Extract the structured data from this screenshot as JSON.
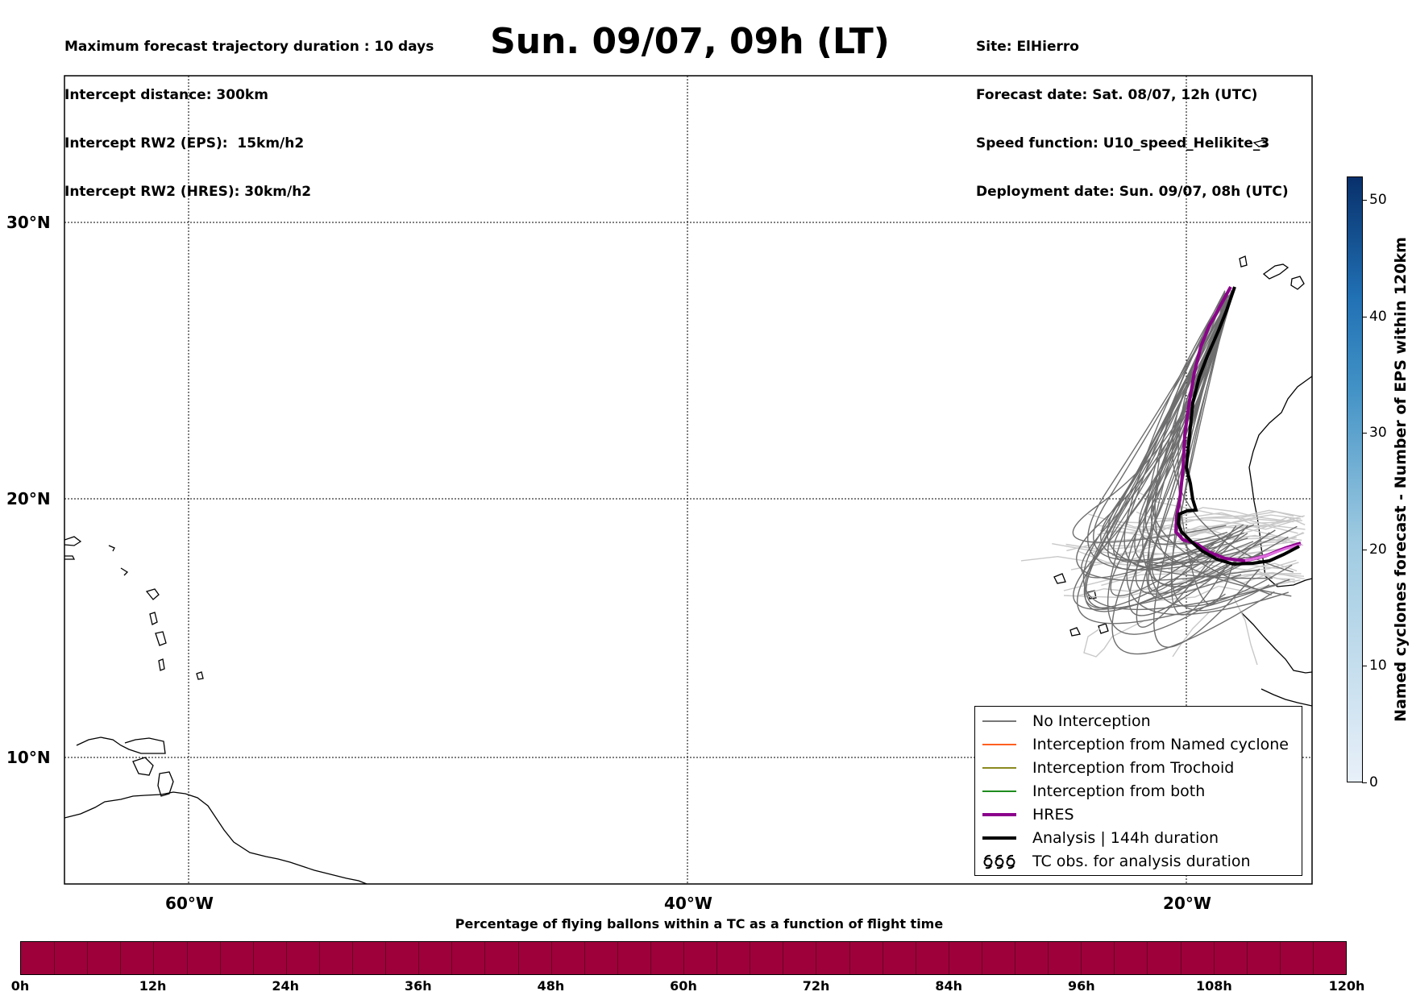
{
  "header": {
    "left_lines": [
      "Maximum forecast trajectory duration : 10 days",
      "Intercept distance: 300km",
      "Intercept RW2 (EPS):  15km/h2",
      "Intercept RW2 (HRES): 30km/h2"
    ],
    "title": "Sun. 09/07, 09h (LT)",
    "right_lines": [
      "Site: ElHierro",
      "Forecast date: Sat. 08/07, 12h (UTC)",
      "Speed function: U10_speed_Helikite_3",
      "Deployment date: Sun. 09/07, 08h (UTC)"
    ]
  },
  "map": {
    "lon_range": [
      -65,
      -15
    ],
    "lat_range": [
      5.5,
      35
    ],
    "gridlines": true,
    "lat_labels": [
      "30°N",
      "20°N",
      "10°N"
    ],
    "lon_labels": [
      "60°W",
      "40°W",
      "20°W"
    ]
  },
  "legend": {
    "items": [
      {
        "label": "No Interception",
        "color": "#777777",
        "style": "thin"
      },
      {
        "label": "Interception from Named cyclone",
        "color": "#ff6020",
        "style": "thin"
      },
      {
        "label": "Interception from Trochoid",
        "color": "#8a8a20",
        "style": "thin"
      },
      {
        "label": "Interception from both",
        "color": "#1e8c1e",
        "style": "thin"
      },
      {
        "label": "HRES",
        "color": "#8b008b",
        "style": "thick"
      },
      {
        "label": "Analysis | 144h duration",
        "color": "#000000",
        "style": "thick"
      },
      {
        "label": "TC obs. for analysis duration",
        "color": "#000000",
        "style": "symbol"
      }
    ]
  },
  "flight_bar": {
    "title": "Percentage of flying ballons within a TC as a function of flight time",
    "color": "#9e003a",
    "tick_labels": [
      "0h",
      "12h",
      "24h",
      "36h",
      "48h",
      "60h",
      "72h",
      "84h",
      "96h",
      "108h",
      "120h"
    ]
  },
  "side_colorbar": {
    "title": "Named cyclones forecast - Number of EPS within 120km",
    "tick_labels": [
      "0",
      "10",
      "20",
      "30",
      "40",
      "50"
    ],
    "range": [
      0,
      52
    ],
    "color_low": "#e8f0f9",
    "color_high": "#08306b"
  }
}
